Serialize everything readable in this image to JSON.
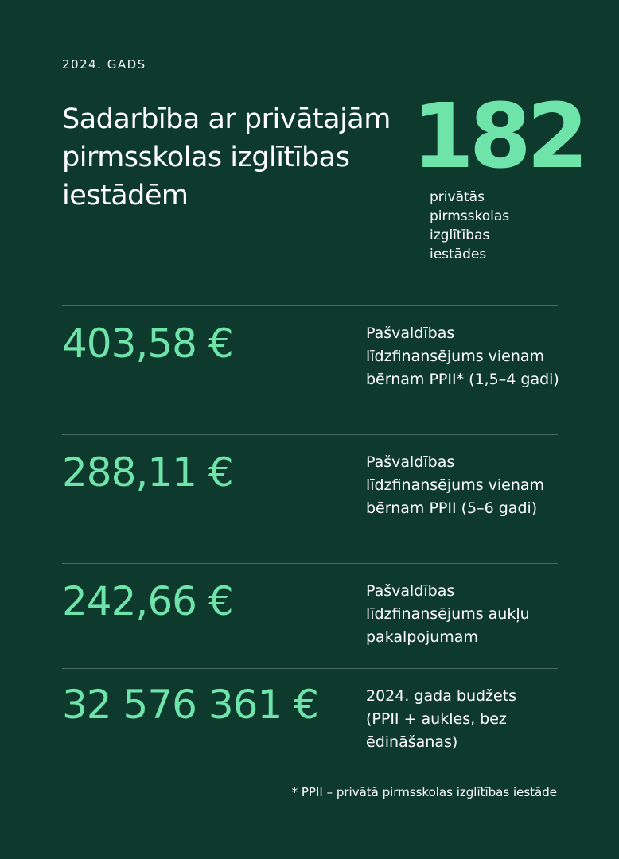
{
  "header": {
    "year": "2024. GADS",
    "title": "Sadarbība ar privātajām pirmsskolas izglītības iestādēm"
  },
  "highlight": {
    "value": "182",
    "label": "privātās pirmsskolas izglītības iestādes"
  },
  "stats": [
    {
      "value": "403,58 €",
      "label": "Pašvaldības līdzfinansējums vienam bērnam PPII* (1,5–4 gadi)"
    },
    {
      "value": "288,11 €",
      "label": "Pašvaldības līdzfinansējums vienam bērnam PPII (5–6 gadi)"
    },
    {
      "value": "242,66 €",
      "label": "Pašvaldības līdzfinansējums aukļu pakalpojumam"
    },
    {
      "value": "32 576 361 €",
      "label": "2024. gada budžets (PPII + aukles, bez ēdināšanas)"
    }
  ],
  "footnote": "* PPII – privātā pirmsskolas izglītības iestāde",
  "colors": {
    "background": "#0e3a2d",
    "accent": "#6ee3aa",
    "text": "#ffffff"
  }
}
